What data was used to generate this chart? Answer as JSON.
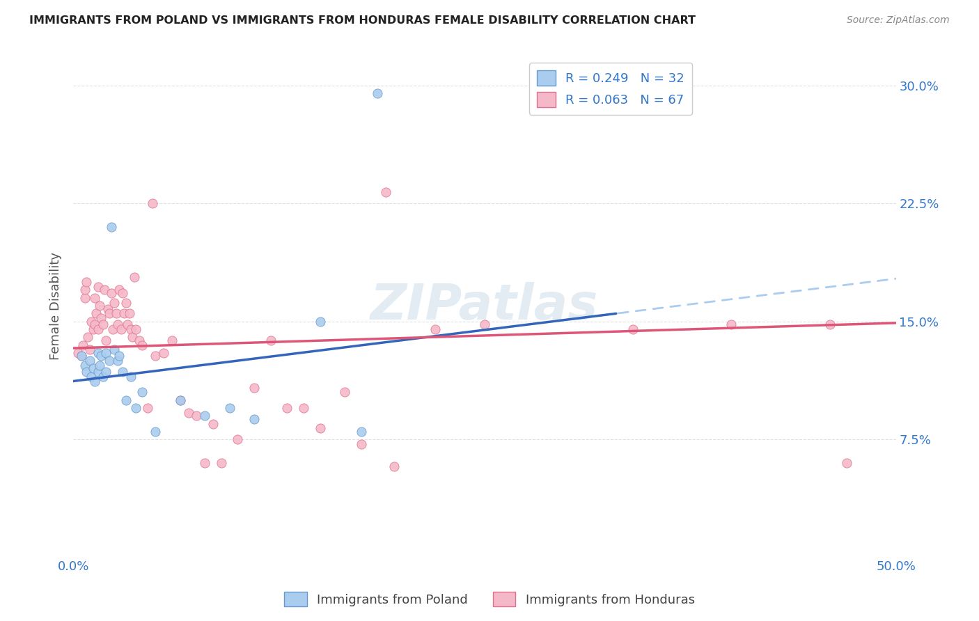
{
  "title": "IMMIGRANTS FROM POLAND VS IMMIGRANTS FROM HONDURAS FEMALE DISABILITY CORRELATION CHART",
  "source": "Source: ZipAtlas.com",
  "ylabel": "Female Disability",
  "xlim": [
    0.0,
    0.5
  ],
  "ylim": [
    0.0,
    0.32
  ],
  "poland_color": "#aaccee",
  "poland_edge_color": "#6699cc",
  "honduras_color": "#f5b8c8",
  "honduras_edge_color": "#e07090",
  "poland_line_color": "#3366bb",
  "honduras_line_color": "#dd5577",
  "poland_dash_color": "#aaccee",
  "poland_r": 0.249,
  "poland_n": 32,
  "honduras_r": 0.063,
  "honduras_n": 67,
  "legend_label_poland": "Immigrants from Poland",
  "legend_label_honduras": "Immigrants from Honduras",
  "poland_scatter_x": [
    0.005,
    0.007,
    0.008,
    0.01,
    0.011,
    0.012,
    0.013,
    0.015,
    0.015,
    0.016,
    0.017,
    0.018,
    0.02,
    0.02,
    0.022,
    0.023,
    0.025,
    0.027,
    0.028,
    0.03,
    0.032,
    0.035,
    0.038,
    0.042,
    0.05,
    0.065,
    0.08,
    0.095,
    0.11,
    0.15,
    0.175,
    0.185
  ],
  "poland_scatter_y": [
    0.128,
    0.122,
    0.118,
    0.125,
    0.115,
    0.12,
    0.112,
    0.13,
    0.118,
    0.122,
    0.128,
    0.115,
    0.13,
    0.118,
    0.125,
    0.21,
    0.132,
    0.125,
    0.128,
    0.118,
    0.1,
    0.115,
    0.095,
    0.105,
    0.08,
    0.1,
    0.09,
    0.095,
    0.088,
    0.15,
    0.08,
    0.295
  ],
  "honduras_scatter_x": [
    0.003,
    0.005,
    0.006,
    0.007,
    0.007,
    0.008,
    0.009,
    0.01,
    0.011,
    0.012,
    0.013,
    0.013,
    0.014,
    0.015,
    0.015,
    0.016,
    0.017,
    0.018,
    0.019,
    0.02,
    0.021,
    0.022,
    0.023,
    0.024,
    0.025,
    0.026,
    0.027,
    0.028,
    0.029,
    0.03,
    0.031,
    0.032,
    0.033,
    0.034,
    0.035,
    0.036,
    0.037,
    0.038,
    0.04,
    0.042,
    0.045,
    0.048,
    0.05,
    0.055,
    0.06,
    0.065,
    0.07,
    0.075,
    0.08,
    0.085,
    0.09,
    0.1,
    0.11,
    0.12,
    0.13,
    0.14,
    0.15,
    0.165,
    0.175,
    0.195,
    0.22,
    0.25,
    0.19,
    0.34,
    0.4,
    0.46,
    0.47
  ],
  "honduras_scatter_y": [
    0.13,
    0.128,
    0.135,
    0.165,
    0.17,
    0.175,
    0.14,
    0.132,
    0.15,
    0.145,
    0.148,
    0.165,
    0.155,
    0.172,
    0.145,
    0.16,
    0.152,
    0.148,
    0.17,
    0.138,
    0.158,
    0.155,
    0.168,
    0.145,
    0.162,
    0.155,
    0.148,
    0.17,
    0.145,
    0.168,
    0.155,
    0.162,
    0.148,
    0.155,
    0.145,
    0.14,
    0.178,
    0.145,
    0.138,
    0.135,
    0.095,
    0.225,
    0.128,
    0.13,
    0.138,
    0.1,
    0.092,
    0.09,
    0.06,
    0.085,
    0.06,
    0.075,
    0.108,
    0.138,
    0.095,
    0.095,
    0.082,
    0.105,
    0.072,
    0.058,
    0.145,
    0.148,
    0.232,
    0.145,
    0.148,
    0.148,
    0.06
  ],
  "background_color": "#ffffff",
  "grid_color": "#e0e0e0",
  "watermark_text": "ZIPatlas",
  "poland_line_start_y": 0.112,
  "poland_line_end_y": 0.155,
  "poland_line_end_x": 0.33,
  "honduras_line_start_y": 0.133,
  "honduras_line_end_y": 0.149
}
